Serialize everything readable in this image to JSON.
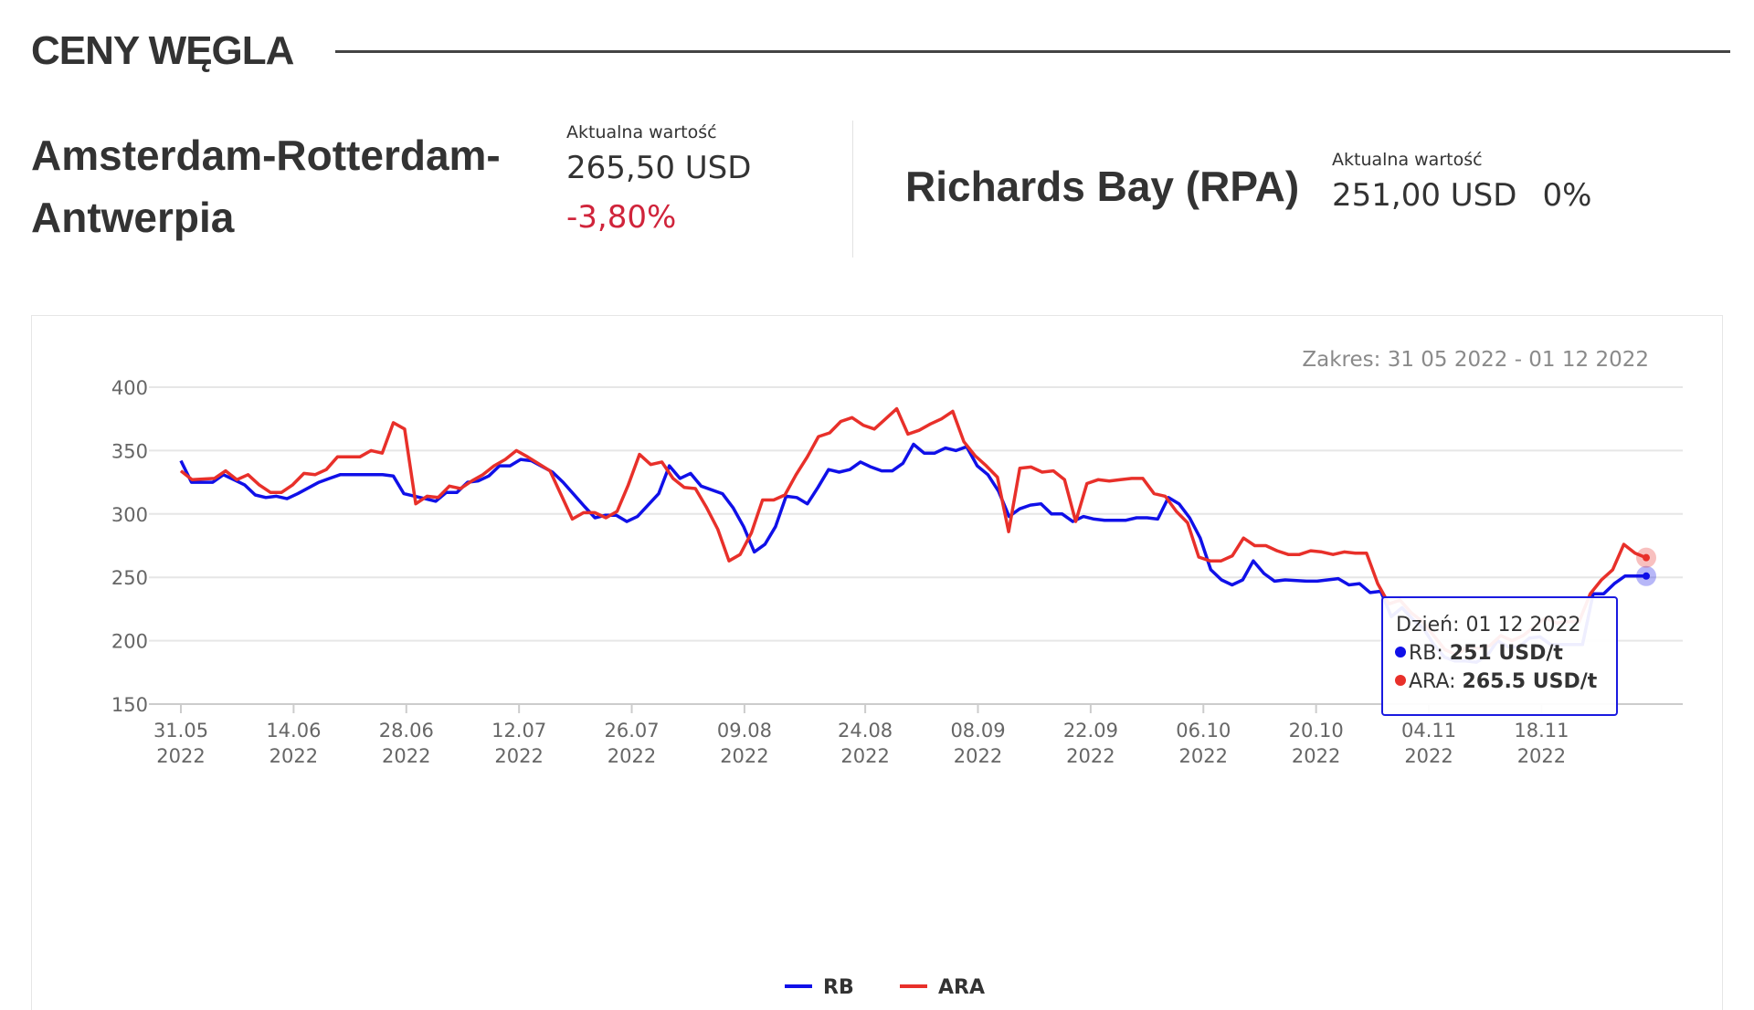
{
  "section": {
    "title": "CENY WĘGLA"
  },
  "markets": {
    "ara": {
      "name_line1": "Amsterdam-Rotterdam-",
      "name_line2": "Antwerpia",
      "value_label": "Aktualna wartość",
      "value": "265,50 USD",
      "change": "-3,80%"
    },
    "rb": {
      "name": "Richards Bay (RPA)",
      "value_label": "Aktualna wartość",
      "value": "251,00 USD",
      "change": "0%"
    }
  },
  "chart": {
    "range_label": "Zakres: 31 05 2022 - 01 12 2022",
    "tooltip": {
      "date_prefix": "Dzień: ",
      "date": "01 12 2022",
      "rb_label": "RB: ",
      "rb_value": "251 USD/t",
      "ara_label": "ARA: ",
      "ara_value": "265.5 USD/t"
    },
    "legend": {
      "rb": "RB",
      "ara": "ARA"
    }
  },
  "colors": {
    "rb": "#1010e8",
    "ara": "#e8302a",
    "grid": "#e6e6e6",
    "tooltip_border": "#1a1ae0"
  },
  "chart_data": {
    "type": "line",
    "ylim": [
      150,
      400
    ],
    "yticks": [
      150,
      200,
      250,
      300,
      350,
      400
    ],
    "xticks": [
      {
        "day": 0,
        "l1": "31.05",
        "l2": "2022"
      },
      {
        "day": 14,
        "l1": "14.06",
        "l2": "2022"
      },
      {
        "day": 28,
        "l1": "28.06",
        "l2": "2022"
      },
      {
        "day": 42,
        "l1": "12.07",
        "l2": "2022"
      },
      {
        "day": 56,
        "l1": "26.07",
        "l2": "2022"
      },
      {
        "day": 70,
        "l1": "09.08",
        "l2": "2022"
      },
      {
        "day": 85,
        "l1": "24.08",
        "l2": "2022"
      },
      {
        "day": 99,
        "l1": "08.09",
        "l2": "2022"
      },
      {
        "day": 113,
        "l1": "22.09",
        "l2": "2022"
      },
      {
        "day": 127,
        "l1": "06.10",
        "l2": "2022"
      },
      {
        "day": 141,
        "l1": "20.10",
        "l2": "2022"
      },
      {
        "day": 155,
        "l1": "04.11",
        "l2": "2022"
      },
      {
        "day": 169,
        "l1": "18.11",
        "l2": "2022"
      }
    ],
    "x_last_day": 182,
    "series": [
      {
        "name": "RB",
        "points": [
          [
            0,
            342
          ],
          [
            1,
            325
          ],
          [
            3,
            325
          ],
          [
            4,
            331
          ],
          [
            5,
            327
          ],
          [
            6,
            323
          ],
          [
            7,
            315
          ],
          [
            8,
            313
          ],
          [
            9,
            314
          ],
          [
            10,
            312
          ],
          [
            11,
            316
          ],
          [
            13,
            325
          ],
          [
            14,
            328
          ],
          [
            15,
            331
          ],
          [
            16,
            331
          ],
          [
            18,
            331
          ],
          [
            19,
            331
          ],
          [
            20,
            330
          ],
          [
            21,
            316
          ],
          [
            23,
            312
          ],
          [
            24,
            310
          ],
          [
            25,
            317
          ],
          [
            26,
            317
          ],
          [
            27,
            325
          ],
          [
            28,
            326
          ],
          [
            29,
            330
          ],
          [
            30,
            338
          ],
          [
            31,
            338
          ],
          [
            32,
            343
          ],
          [
            33,
            342
          ],
          [
            35,
            333
          ],
          [
            36,
            325
          ],
          [
            38,
            306
          ],
          [
            39,
            297
          ],
          [
            40,
            299
          ],
          [
            41,
            299
          ],
          [
            42,
            294
          ],
          [
            43,
            298
          ],
          [
            45,
            316
          ],
          [
            46,
            338
          ],
          [
            47,
            328
          ],
          [
            48,
            332
          ],
          [
            49,
            322
          ],
          [
            51,
            316
          ],
          [
            52,
            305
          ],
          [
            53,
            290
          ],
          [
            54,
            270
          ],
          [
            55,
            276
          ],
          [
            56,
            290
          ],
          [
            57,
            314
          ],
          [
            58,
            313
          ],
          [
            59,
            308
          ],
          [
            60,
            321
          ],
          [
            61,
            335
          ],
          [
            62,
            333
          ],
          [
            63,
            335
          ],
          [
            64,
            341
          ],
          [
            65,
            337
          ],
          [
            66,
            334
          ],
          [
            67,
            334
          ],
          [
            68,
            340
          ],
          [
            69,
            355
          ],
          [
            70,
            348
          ],
          [
            71,
            348
          ],
          [
            72,
            352
          ],
          [
            73,
            350
          ],
          [
            74,
            353
          ],
          [
            75,
            338
          ],
          [
            76,
            331
          ],
          [
            77,
            318
          ],
          [
            78,
            298
          ],
          [
            79,
            304
          ],
          [
            80,
            307
          ],
          [
            81,
            308
          ],
          [
            82,
            300
          ],
          [
            83,
            300
          ],
          [
            84,
            294
          ],
          [
            85,
            298
          ],
          [
            86,
            296
          ],
          [
            87,
            295
          ],
          [
            88,
            295
          ],
          [
            89,
            295
          ],
          [
            90,
            297
          ],
          [
            91,
            297
          ],
          [
            92,
            296
          ],
          [
            93,
            313
          ],
          [
            94,
            308
          ],
          [
            95,
            297
          ],
          [
            96,
            281
          ],
          [
            97,
            256
          ],
          [
            98,
            248
          ],
          [
            99,
            244
          ],
          [
            100,
            248
          ],
          [
            101,
            263
          ],
          [
            102,
            253
          ],
          [
            103,
            247
          ],
          [
            104,
            248
          ],
          [
            106,
            247
          ],
          [
            107,
            247
          ],
          [
            108,
            248
          ],
          [
            109,
            249
          ],
          [
            110,
            244
          ],
          [
            111,
            245
          ],
          [
            112,
            238
          ],
          [
            113,
            239
          ],
          [
            114,
            219
          ],
          [
            115,
            226
          ],
          [
            116,
            217
          ],
          [
            117,
            210
          ],
          [
            118,
            197
          ],
          [
            119,
            187
          ],
          [
            120,
            184
          ],
          [
            121,
            184
          ],
          [
            122,
            183
          ],
          [
            123,
            188
          ],
          [
            124,
            200
          ],
          [
            125,
            195
          ],
          [
            126,
            195
          ],
          [
            127,
            202
          ],
          [
            128,
            203
          ],
          [
            129,
            197
          ],
          [
            131,
            197
          ],
          [
            132,
            197
          ],
          [
            133,
            237
          ],
          [
            134,
            237
          ],
          [
            135,
            245
          ],
          [
            136,
            251
          ],
          [
            137,
            251
          ],
          [
            138,
            251
          ]
        ]
      },
      {
        "name": "ARA",
        "points": [
          [
            0,
            334
          ],
          [
            1,
            327
          ],
          [
            3,
            328
          ],
          [
            4,
            334
          ],
          [
            5,
            327
          ],
          [
            6,
            331
          ],
          [
            7,
            323
          ],
          [
            8,
            317
          ],
          [
            9,
            317
          ],
          [
            10,
            323
          ],
          [
            11,
            332
          ],
          [
            12,
            331
          ],
          [
            13,
            335
          ],
          [
            14,
            345
          ],
          [
            15,
            345
          ],
          [
            16,
            345
          ],
          [
            17,
            350
          ],
          [
            18,
            348
          ],
          [
            19,
            372
          ],
          [
            20,
            367
          ],
          [
            21,
            308
          ],
          [
            22,
            314
          ],
          [
            23,
            313
          ],
          [
            24,
            322
          ],
          [
            25,
            320
          ],
          [
            26,
            326
          ],
          [
            27,
            331
          ],
          [
            28,
            338
          ],
          [
            29,
            343
          ],
          [
            30,
            350
          ],
          [
            31,
            345
          ],
          [
            33,
            334
          ],
          [
            34,
            315
          ],
          [
            35,
            296
          ],
          [
            36,
            301
          ],
          [
            37,
            301
          ],
          [
            38,
            297
          ],
          [
            39,
            302
          ],
          [
            40,
            323
          ],
          [
            41,
            347
          ],
          [
            42,
            339
          ],
          [
            43,
            341
          ],
          [
            44,
            328
          ],
          [
            45,
            321
          ],
          [
            46,
            320
          ],
          [
            47,
            305
          ],
          [
            48,
            288
          ],
          [
            49,
            263
          ],
          [
            50,
            268
          ],
          [
            51,
            285
          ],
          [
            52,
            311
          ],
          [
            53,
            311
          ],
          [
            54,
            315
          ],
          [
            55,
            331
          ],
          [
            56,
            345
          ],
          [
            57,
            361
          ],
          [
            58,
            364
          ],
          [
            59,
            373
          ],
          [
            60,
            376
          ],
          [
            61,
            370
          ],
          [
            62,
            367
          ],
          [
            63,
            375
          ],
          [
            64,
            383
          ],
          [
            65,
            363
          ],
          [
            66,
            366
          ],
          [
            67,
            371
          ],
          [
            68,
            375
          ],
          [
            69,
            381
          ],
          [
            70,
            357
          ],
          [
            71,
            346
          ],
          [
            72,
            338
          ],
          [
            73,
            329
          ],
          [
            74,
            286
          ],
          [
            75,
            336
          ],
          [
            76,
            337
          ],
          [
            77,
            333
          ],
          [
            78,
            334
          ],
          [
            79,
            327
          ],
          [
            80,
            294
          ],
          [
            81,
            324
          ],
          [
            82,
            327
          ],
          [
            83,
            326
          ],
          [
            84,
            327
          ],
          [
            85,
            328
          ],
          [
            86,
            328
          ],
          [
            87,
            316
          ],
          [
            88,
            314
          ],
          [
            89,
            302
          ],
          [
            90,
            293
          ],
          [
            91,
            266
          ],
          [
            92,
            263
          ],
          [
            93,
            263
          ],
          [
            94,
            267
          ],
          [
            95,
            281
          ],
          [
            96,
            275
          ],
          [
            97,
            275
          ],
          [
            98,
            271
          ],
          [
            99,
            268
          ],
          [
            100,
            268
          ],
          [
            101,
            271
          ],
          [
            102,
            270
          ],
          [
            103,
            268
          ],
          [
            104,
            270
          ],
          [
            105,
            269
          ],
          [
            106,
            269
          ],
          [
            107,
            245
          ],
          [
            108,
            229
          ],
          [
            109,
            232
          ],
          [
            110,
            222
          ],
          [
            111,
            215
          ],
          [
            112,
            204
          ],
          [
            113,
            193
          ],
          [
            114,
            189
          ],
          [
            115,
            195
          ],
          [
            116,
            194
          ],
          [
            117,
            196
          ],
          [
            118,
            204
          ],
          [
            119,
            200
          ],
          [
            120,
            204
          ],
          [
            121,
            211
          ],
          [
            122,
            218
          ],
          [
            123,
            214
          ],
          [
            124,
            215
          ],
          [
            125,
            215
          ],
          [
            126,
            237
          ],
          [
            127,
            248
          ],
          [
            128,
            256
          ],
          [
            129,
            276
          ],
          [
            130,
            269
          ],
          [
            131,
            265.5
          ]
        ]
      }
    ]
  }
}
